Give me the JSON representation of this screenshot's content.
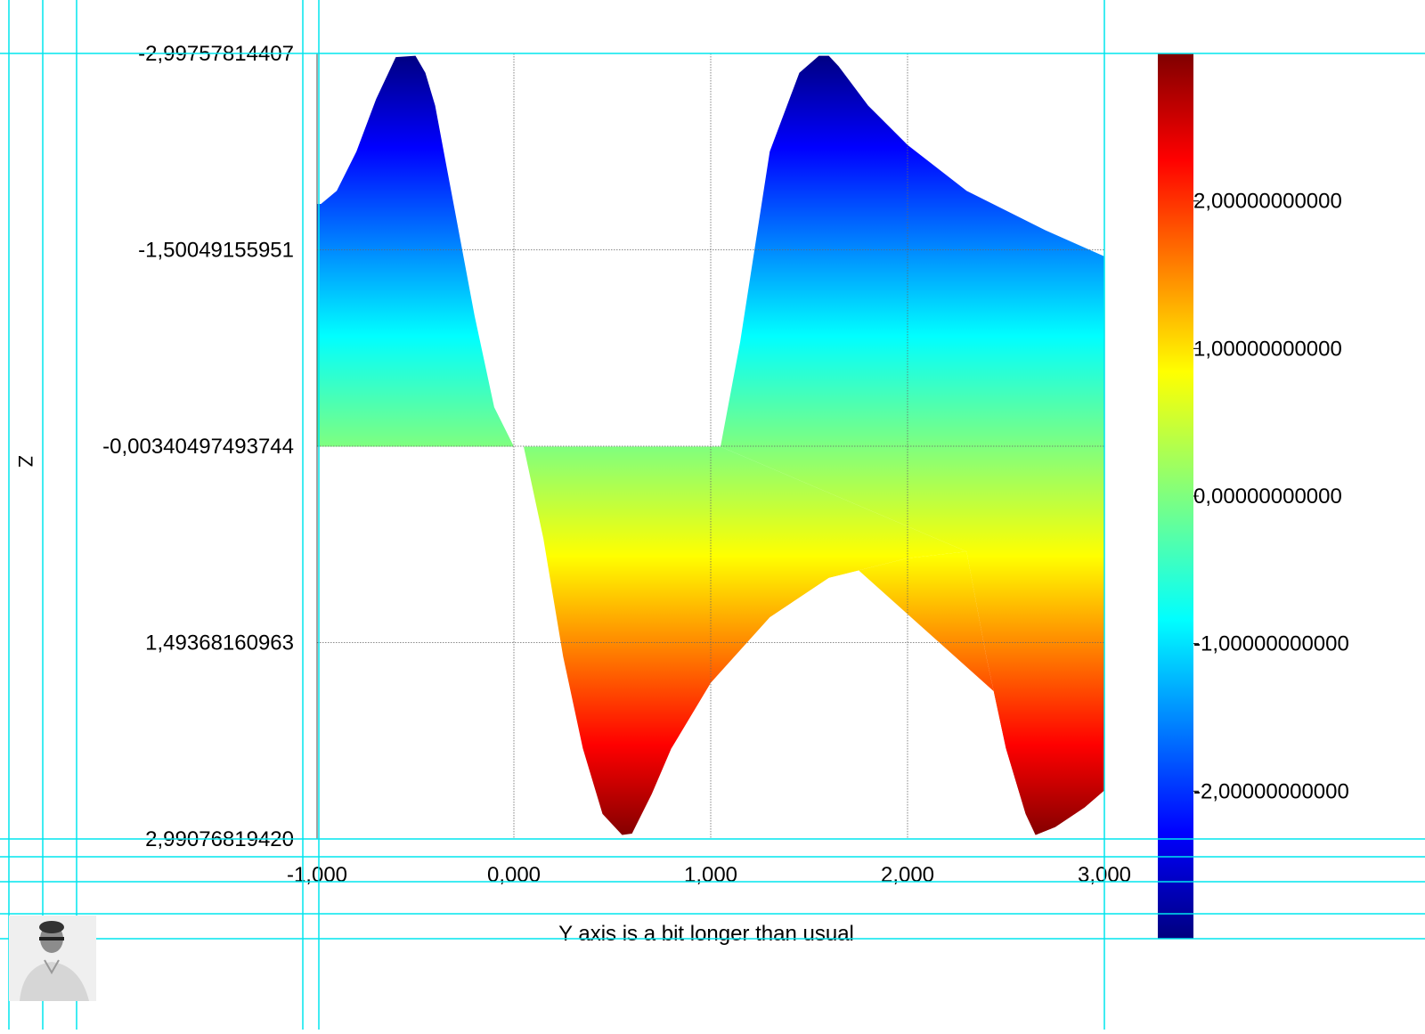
{
  "axes": {
    "z_label": "Z",
    "x_label": "Y axis is a bit longer than usual"
  },
  "chart_data": {
    "type": "heatmap",
    "title": "",
    "xlabel": "Y axis is a bit longer than usual",
    "ylabel": "Z",
    "xlim": [
      -1.0,
      3.0
    ],
    "ylim": [
      -2.99757814407,
      2.9907681942
    ],
    "y_inverted": true,
    "x_ticks": [
      -1.0,
      0.0,
      1.0,
      2.0,
      3.0
    ],
    "x_tick_labels": [
      "-1,000",
      "0,000",
      "1,000",
      "2,000",
      "3,000"
    ],
    "y_ticks": [
      -2.99757814407,
      -1.50049155951,
      -0.00340497493744,
      1.49368160963,
      2.9907681942
    ],
    "y_tick_labels": [
      "-2,99757814407",
      "-1,50049155951",
      "-0,00340497493744",
      "1,49368160963",
      "2,99076819420"
    ],
    "grid": true,
    "colorscale": "jet",
    "colorbar": {
      "range": [
        -3.0,
        3.0
      ],
      "ticks": [
        2.0,
        1.0,
        0.0,
        -1.0,
        -2.0
      ],
      "tick_labels": [
        "2,00000000000",
        "1,00000000000",
        "0,00000000000",
        "-1,00000000000",
        "-2,00000000000"
      ]
    },
    "series": [
      {
        "upper_boundary": {
          "x": [
            -0.98,
            -0.9,
            -0.8,
            -0.7,
            -0.6,
            -0.5,
            -0.45,
            -0.4,
            -0.35,
            -0.3,
            -0.2,
            -0.1,
            0.0,
            0.05
          ],
          "z": [
            -1.85,
            -1.95,
            -2.25,
            -2.65,
            -2.97,
            -2.98,
            -2.85,
            -2.6,
            -2.2,
            -1.8,
            -1.0,
            -0.3,
            0.0,
            0.0
          ]
        },
        "lower_boundary": {
          "x": [
            0.05,
            0.15,
            0.25,
            0.35,
            0.45,
            0.55,
            0.6,
            0.7,
            0.8,
            1.0,
            1.3,
            1.6,
            2.0,
            2.3
          ],
          "z": [
            0.0,
            0.7,
            1.6,
            2.3,
            2.8,
            2.96,
            2.95,
            2.65,
            2.3,
            1.8,
            1.3,
            1.0,
            0.85,
            0.8
          ]
        },
        "upper_boundary_2": {
          "x": [
            1.05,
            1.15,
            1.3,
            1.45,
            1.55,
            1.6,
            1.65,
            1.8,
            2.0,
            2.3,
            2.7,
            3.0
          ],
          "z": [
            0.0,
            -0.8,
            -2.25,
            -2.85,
            -2.98,
            -2.98,
            -2.9,
            -2.6,
            -2.3,
            -1.95,
            -1.65,
            -1.45
          ]
        },
        "lower_boundary_2": {
          "x": [
            2.3,
            2.4,
            2.5,
            2.6,
            2.65,
            2.75,
            2.9,
            3.0
          ],
          "z": [
            0.8,
            1.6,
            2.3,
            2.8,
            2.96,
            2.9,
            2.75,
            2.62
          ]
        }
      }
    ]
  }
}
